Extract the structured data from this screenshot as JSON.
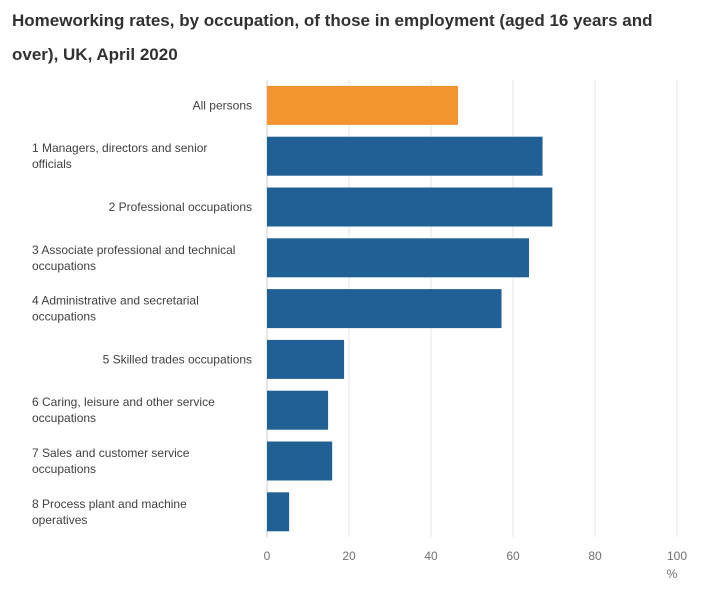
{
  "chart_data": {
    "type": "bar",
    "orientation": "horizontal",
    "title": "Homeworking rates, by occupation, of those in employment (aged 16 years and over), UK, April 2020",
    "categories": [
      [
        "All persons"
      ],
      [
        "1 Managers, directors and senior",
        "officials"
      ],
      [
        "2 Professional occupations"
      ],
      [
        "3 Associate professional and technical",
        "occupations"
      ],
      [
        "4 Administrative and secretarial",
        "occupations"
      ],
      [
        "5 Skilled trades occupations"
      ],
      [
        "6 Caring, leisure and other service",
        "occupations"
      ],
      [
        "7 Sales and customer service",
        "occupations"
      ],
      [
        "8 Process plant and machine",
        "operatives"
      ]
    ],
    "values": [
      46.6,
      67.2,
      69.6,
      63.9,
      57.2,
      18.8,
      14.9,
      15.9,
      5.4
    ],
    "xlim": [
      0,
      100
    ],
    "xticks": [
      "0",
      "20",
      "40",
      "60",
      "80",
      "100"
    ],
    "xticks_values": [
      0,
      20,
      40,
      60,
      80,
      100
    ],
    "unit": "%",
    "grid": true,
    "highlight_index": 0,
    "colors": {
      "highlight": "#f39431",
      "default": "#206095"
    }
  }
}
